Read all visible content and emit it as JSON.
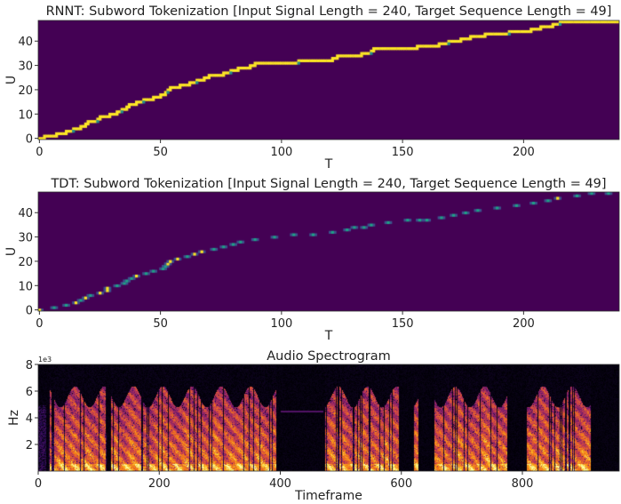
{
  "chart_data": [
    {
      "type": "heatmap",
      "title": "RNNT: Subword Tokenization [Input Signal Length = 240, Target Sequence Length = 49]",
      "xlabel": "T",
      "ylabel": "U",
      "xlim": [
        0,
        240
      ],
      "ylim": [
        0,
        49
      ],
      "xticks": [
        0,
        50,
        100,
        150,
        200
      ],
      "yticks": [
        0,
        10,
        20,
        30,
        40
      ],
      "colormap": "viridis",
      "path_steps_t_u": [
        [
          0,
          0
        ],
        [
          2,
          1
        ],
        [
          7,
          2
        ],
        [
          11,
          3
        ],
        [
          14,
          4
        ],
        [
          17,
          5
        ],
        [
          19,
          6
        ],
        [
          20,
          7
        ],
        [
          24,
          8
        ],
        [
          25,
          9
        ],
        [
          29,
          10
        ],
        [
          32,
          11
        ],
        [
          34,
          12
        ],
        [
          36,
          13
        ],
        [
          37,
          14
        ],
        [
          40,
          15
        ],
        [
          43,
          16
        ],
        [
          47,
          17
        ],
        [
          50,
          18
        ],
        [
          52,
          19
        ],
        [
          53,
          20
        ],
        [
          54,
          21
        ],
        [
          58,
          22
        ],
        [
          62,
          23
        ],
        [
          65,
          24
        ],
        [
          68,
          25
        ],
        [
          70,
          26
        ],
        [
          76,
          27
        ],
        [
          79,
          28
        ],
        [
          82,
          29
        ],
        [
          87,
          30
        ],
        [
          89,
          31
        ],
        [
          107,
          32
        ],
        [
          121,
          33
        ],
        [
          123,
          34
        ],
        [
          133,
          35
        ],
        [
          137,
          36
        ],
        [
          138,
          37
        ],
        [
          156,
          38
        ],
        [
          165,
          39
        ],
        [
          169,
          40
        ],
        [
          174,
          41
        ],
        [
          178,
          42
        ],
        [
          184,
          43
        ],
        [
          194,
          44
        ],
        [
          203,
          45
        ],
        [
          207,
          46
        ],
        [
          212,
          47
        ],
        [
          215,
          48
        ]
      ]
    },
    {
      "type": "heatmap",
      "title": "TDT: Subword Tokenization [Input Signal Length = 240, Target Sequence Length = 49]",
      "xlabel": "T",
      "ylabel": "U",
      "xlim": [
        0,
        240
      ],
      "ylim": [
        0,
        49
      ],
      "xticks": [
        0,
        50,
        100,
        150,
        200
      ],
      "yticks": [
        0,
        10,
        20,
        30,
        40
      ],
      "colormap": "viridis",
      "points_t_u": [
        [
          0,
          0
        ],
        [
          6,
          1
        ],
        [
          11,
          2
        ],
        [
          15,
          3
        ],
        [
          17,
          4
        ],
        [
          19,
          5
        ],
        [
          21,
          6
        ],
        [
          25,
          7
        ],
        [
          28,
          8
        ],
        [
          28,
          9
        ],
        [
          32,
          10
        ],
        [
          35,
          11
        ],
        [
          36,
          12
        ],
        [
          38,
          13
        ],
        [
          40,
          14
        ],
        [
          44,
          15
        ],
        [
          47,
          16
        ],
        [
          51,
          17
        ],
        [
          52,
          18
        ],
        [
          53,
          19
        ],
        [
          54,
          20
        ],
        [
          57,
          21
        ],
        [
          61,
          22
        ],
        [
          64,
          23
        ],
        [
          67,
          24
        ],
        [
          72,
          25
        ],
        [
          76,
          26
        ],
        [
          80,
          27
        ],
        [
          83,
          28
        ],
        [
          89,
          29
        ],
        [
          97,
          30
        ],
        [
          105,
          31
        ],
        [
          113,
          31
        ],
        [
          121,
          32
        ],
        [
          127,
          33
        ],
        [
          130,
          34
        ],
        [
          134,
          34
        ],
        [
          137,
          35
        ],
        [
          144,
          36
        ],
        [
          152,
          37
        ],
        [
          157,
          37
        ],
        [
          160,
          37
        ],
        [
          166,
          38
        ],
        [
          171,
          39
        ],
        [
          176,
          40
        ],
        [
          181,
          41
        ],
        [
          189,
          42
        ],
        [
          197,
          43
        ],
        [
          204,
          44
        ],
        [
          210,
          45
        ],
        [
          214,
          46
        ],
        [
          222,
          47
        ],
        [
          228,
          48
        ],
        [
          235,
          48
        ]
      ],
      "bright_points_t": [
        0,
        15,
        19,
        25,
        28,
        40,
        53,
        54,
        57,
        64,
        67,
        214
      ]
    },
    {
      "type": "heatmap",
      "title": "Audio Spectrogram",
      "xlabel": "Timeframe",
      "ylabel": "Hz",
      "xlim": [
        0,
        960
      ],
      "ylim": [
        0,
        8000
      ],
      "xticks": [
        0,
        200,
        400,
        600,
        800
      ],
      "yticks": [
        2,
        4,
        6,
        8
      ],
      "y_offset_label": "1e3",
      "colormap": "inferno",
      "speech_segments": [
        [
          17,
          112
        ],
        [
          120,
          393
        ],
        [
          474,
          595
        ],
        [
          620,
          628
        ],
        [
          654,
          775
        ],
        [
          806,
          912
        ]
      ],
      "faint_segments": [
        [
          0,
          12
        ],
        [
          400,
          470
        ],
        [
          440,
          460
        ]
      ]
    }
  ]
}
